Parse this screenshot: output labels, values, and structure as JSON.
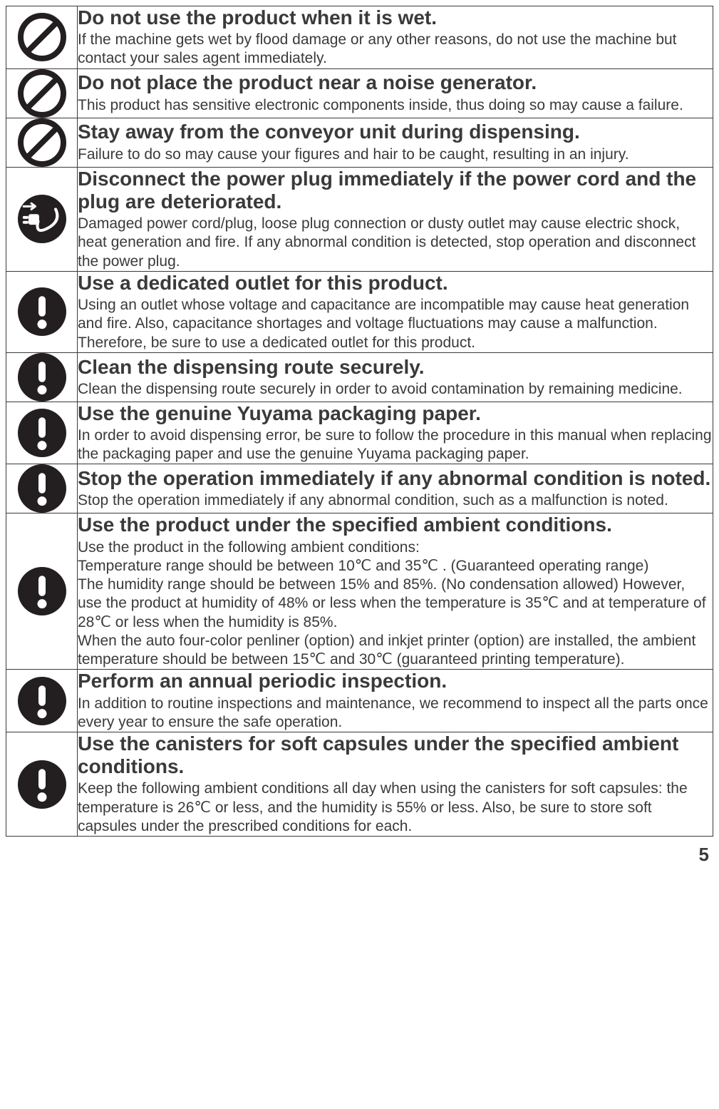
{
  "page_number": "5",
  "icons": {
    "prohibit": {
      "type": "prohibition",
      "stroke": "#231f20",
      "fill": "none",
      "size": 68,
      "stroke_width": 8
    },
    "mandatory": {
      "type": "mandatory-exclamation",
      "circle_fill": "#231f20",
      "mark_fill": "#ffffff",
      "size": 68
    },
    "unplug": {
      "type": "unplug",
      "circle_fill": "#231f20",
      "mark_fill": "#ffffff",
      "size": 68
    }
  },
  "rows": [
    {
      "icon": "prohibit",
      "heading": "Do not use the product when it is wet.",
      "body": "If the machine gets wet by flood damage or any other reasons, do not use the machine but contact your sales agent immediately."
    },
    {
      "icon": "prohibit",
      "heading": "Do not place the product near a noise generator.",
      "body": "This product has sensitive electronic components inside, thus doing so may cause a failure."
    },
    {
      "icon": "prohibit",
      "heading": "Stay away from the conveyor unit during dispensing.",
      "body": "Failure to do so may cause your figures and hair to be caught, resulting in an injury."
    },
    {
      "icon": "unplug",
      "heading": "Disconnect the power plug immediately if the power cord and the plug are deteriorated.",
      "body": "Damaged power cord/plug, loose plug connection or dusty outlet may cause electric shock, heat generation and fire. If any abnormal condition is detected, stop operation and disconnect the power plug."
    },
    {
      "icon": "mandatory",
      "heading": "Use a dedicated outlet for this product.",
      "body": "Using an outlet whose voltage and capacitance are incompatible may cause heat generation and fire. Also, capacitance shortages and voltage fluctuations may cause a malfunction. Therefore, be sure to use a dedicated outlet for this product."
    },
    {
      "icon": "mandatory",
      "heading": "Clean the dispensing route securely.",
      "body": "Clean the dispensing route securely in order to avoid contamination by remaining medicine."
    },
    {
      "icon": "mandatory",
      "heading": "Use the genuine Yuyama packaging paper.",
      "body": "In order to avoid dispensing error, be sure to follow the procedure in this manual when replacing the packaging paper and use the genuine Yuyama packaging paper."
    },
    {
      "icon": "mandatory",
      "heading": "Stop the operation immediately if any abnormal condition is noted.",
      "body": "Stop the operation immediately if any abnormal condition, such as a malfunction is noted."
    },
    {
      "icon": "mandatory",
      "heading": "Use the product under the specified ambient conditions.",
      "body": "Use the product in the following ambient conditions:\nTemperature range should be between 10℃ and 35℃ . (Guaranteed operating range)\nThe humidity range should be between 15% and 85%. (No condensation allowed) However, use the product at humidity of 48% or less when the temperature is 35℃ and at temperature of 28℃ or less when the humidity is 85%.\nWhen the auto four-color penliner (option) and inkjet printer (option) are installed, the ambient temperature should be between 15℃ and 30℃ (guaranteed printing temperature)."
    },
    {
      "icon": "mandatory",
      "heading": "Perform an annual periodic inspection.",
      "body": "In addition to routine inspections and maintenance, we recommend to inspect all the parts once every year to ensure the safe operation."
    },
    {
      "icon": "mandatory",
      "heading": "Use the canisters for soft capsules under the specified ambient conditions.",
      "body": "Keep the following ambient conditions all day when using the canisters for soft capsules: the temperature is 26℃ or less, and the humidity is 55% or less. Also, be sure to store soft capsules under the prescribed conditions for each."
    }
  ]
}
